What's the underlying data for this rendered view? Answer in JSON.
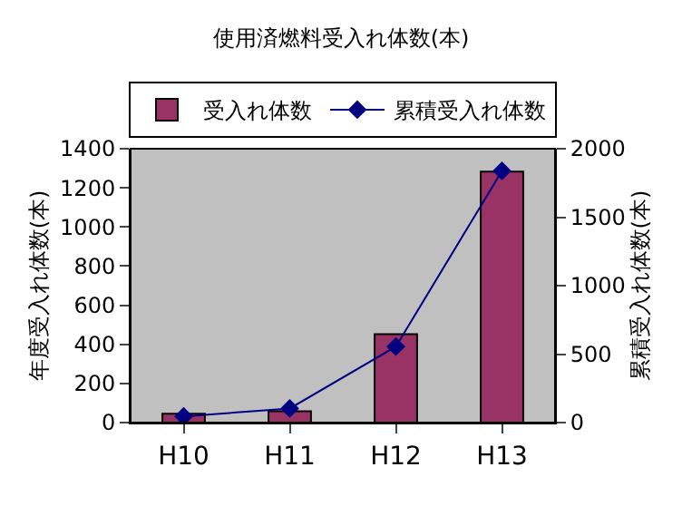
{
  "chart_data": {
    "type": "bar",
    "title": "使用済燃料受入れ体数(本)",
    "categories": [
      "H10",
      "H11",
      "H12",
      "H13"
    ],
    "ylabel": "年度受入れ体数(本)",
    "y2label": "累積受入れ体数(本)",
    "series": [
      {
        "name": "受入れ体数",
        "color": "#993366",
        "values": [
          45,
          58,
          452,
          1283
        ]
      },
      {
        "name": "累積受入れ体数",
        "color": "#000080",
        "values": [
          45,
          103,
          555,
          1838
        ],
        "type": "line",
        "axis": "y2",
        "marker": "diamond"
      }
    ],
    "ylim": [
      0,
      1400
    ],
    "yticks": [
      0,
      200,
      400,
      600,
      800,
      1000,
      1200,
      1400
    ],
    "y2lim": [
      0,
      2000
    ],
    "y2ticks": [
      0,
      500,
      1000,
      1500,
      2000
    ],
    "grid": false,
    "legend": "top"
  }
}
